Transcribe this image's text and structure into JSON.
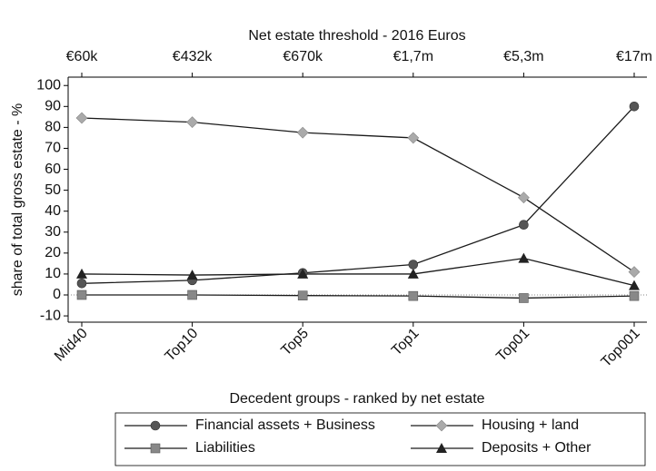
{
  "chart_data": {
    "type": "line",
    "top_axis_title": "Net estate threshold - 2016 Euros",
    "top_axis_labels": [
      "€60k",
      "€432k",
      "€670k",
      "€1,7m",
      "€5,3m",
      "€17m"
    ],
    "x_label": "Decedent groups - ranked by net estate",
    "y_label": "share of total gross estate - %",
    "categories": [
      "Mid40",
      "Top10",
      "Top5",
      "Top1",
      "Top01",
      "Top001"
    ],
    "series": [
      {
        "name": "Financial assets + Business",
        "color": "#555555",
        "marker": "circle",
        "values": [
          5.5,
          7,
          10.5,
          14.5,
          33.5,
          90
        ]
      },
      {
        "name": "Housing + land",
        "color": "#aaaaaa",
        "marker": "diamond",
        "values": [
          84.5,
          82.5,
          77.5,
          75,
          46.5,
          11
        ]
      },
      {
        "name": "Liabilities",
        "color": "#888888",
        "marker": "square",
        "values": [
          0,
          0,
          -0.3,
          -0.5,
          -1.5,
          -0.5
        ]
      },
      {
        "name": "Deposits + Other",
        "color": "#222222",
        "marker": "triangle",
        "values": [
          10,
          9.5,
          10,
          10,
          17.5,
          4.5
        ]
      }
    ],
    "line_color": "#1a1a1a",
    "ylim": [
      -13,
      104
    ],
    "yticks": [
      -10,
      0,
      10,
      20,
      30,
      40,
      50,
      60,
      70,
      80,
      90,
      100
    ],
    "zero_line": true,
    "legend": "bottom"
  }
}
